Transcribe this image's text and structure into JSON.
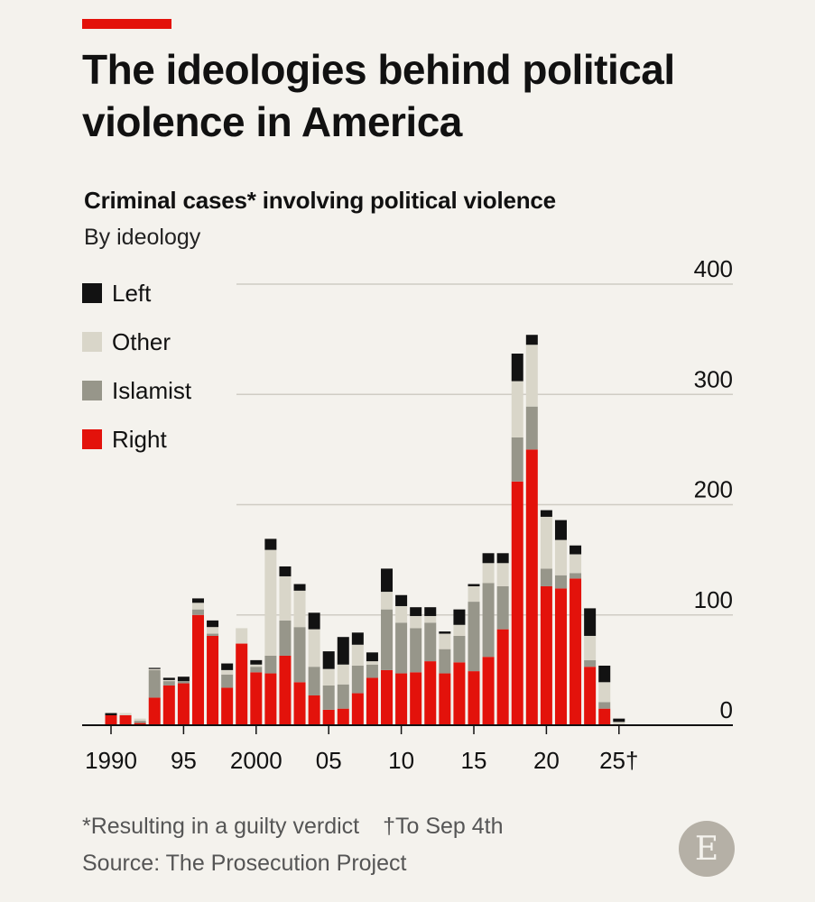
{
  "header": {
    "title": "The ideologies behind political violence in America",
    "subtitle": "Criminal cases* involving political violence",
    "subsubtitle": "By ideology"
  },
  "legend": [
    {
      "label": "Left",
      "color": "#121212"
    },
    {
      "label": "Other",
      "color": "#d9d6c9"
    },
    {
      "label": "Islamist",
      "color": "#97968a"
    },
    {
      "label": "Right",
      "color": "#e3120b"
    }
  ],
  "chart_data": {
    "type": "bar",
    "stacked": true,
    "x": [
      1990,
      1991,
      1992,
      1993,
      1994,
      1995,
      1996,
      1997,
      1998,
      1999,
      2000,
      2001,
      2002,
      2003,
      2004,
      2005,
      2006,
      2007,
      2008,
      2009,
      2010,
      2011,
      2012,
      2013,
      2014,
      2015,
      2016,
      2017,
      2018,
      2019,
      2020,
      2021,
      2022,
      2023,
      2024,
      2025
    ],
    "xticks": [
      {
        "value": 1990,
        "label": "1990"
      },
      {
        "value": 1995,
        "label": "95"
      },
      {
        "value": 2000,
        "label": "2000"
      },
      {
        "value": 2005,
        "label": "05"
      },
      {
        "value": 2010,
        "label": "10"
      },
      {
        "value": 2015,
        "label": "15"
      },
      {
        "value": 2020,
        "label": "20"
      },
      {
        "value": 2025,
        "label": "25†"
      }
    ],
    "yticks": [
      0,
      100,
      200,
      300,
      400
    ],
    "ylim": [
      0,
      400
    ],
    "grid": true,
    "legend_position": "top-left",
    "series": [
      {
        "name": "Right",
        "color": "#e3120b",
        "values": [
          9,
          9,
          2,
          25,
          36,
          38,
          100,
          81,
          34,
          74,
          48,
          47,
          63,
          39,
          27,
          14,
          15,
          29,
          43,
          50,
          47,
          48,
          58,
          47,
          57,
          49,
          62,
          87,
          221,
          250,
          126,
          124,
          133,
          53,
          15,
          0
        ]
      },
      {
        "name": "Islamist",
        "color": "#97968a",
        "values": [
          0,
          0,
          2,
          25,
          4,
          2,
          5,
          2,
          12,
          0,
          5,
          16,
          32,
          50,
          26,
          22,
          22,
          25,
          12,
          55,
          46,
          40,
          35,
          22,
          24,
          63,
          67,
          39,
          40,
          39,
          16,
          12,
          5,
          6,
          6,
          0
        ]
      },
      {
        "name": "Other",
        "color": "#d9d6c9",
        "values": [
          0,
          2,
          2,
          1,
          1,
          0,
          6,
          6,
          4,
          14,
          2,
          96,
          40,
          33,
          34,
          15,
          18,
          19,
          3,
          16,
          15,
          11,
          6,
          14,
          10,
          14,
          18,
          21,
          51,
          56,
          47,
          32,
          17,
          22,
          18,
          3
        ]
      },
      {
        "name": "Left",
        "color": "#121212",
        "values": [
          2,
          0,
          0,
          1,
          2,
          4,
          4,
          6,
          6,
          0,
          4,
          10,
          9,
          6,
          15,
          16,
          25,
          11,
          8,
          21,
          10,
          8,
          8,
          2,
          14,
          2,
          9,
          9,
          25,
          9,
          6,
          18,
          8,
          25,
          15,
          3
        ]
      }
    ]
  },
  "footnote": {
    "asterisk_note": "*Resulting in a guilty verdict",
    "dagger_note": "†To Sep 4th"
  },
  "source": "Source: The Prosecution Project",
  "logo": {
    "letter": "E"
  }
}
